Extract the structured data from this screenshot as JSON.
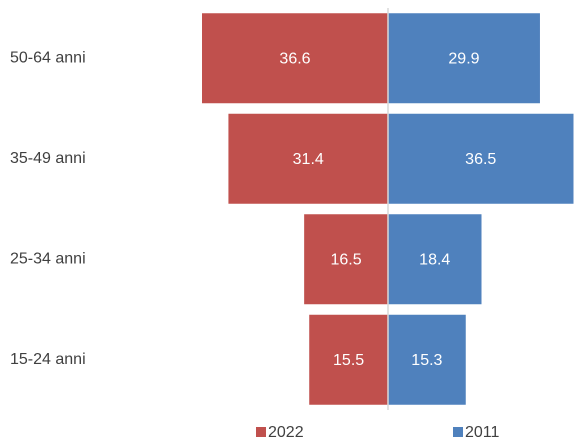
{
  "chart_data": {
    "type": "butterfly",
    "categories": [
      "50-64 anni",
      "35-49 anni",
      "25-34 anni",
      "15-24 anni"
    ],
    "series": [
      {
        "name": "2022",
        "color": "#c0504d",
        "values": [
          36.6,
          31.4,
          16.5,
          15.5
        ]
      },
      {
        "name": "2011",
        "color": "#4f81bd",
        "values": [
          29.9,
          36.5,
          18.4,
          15.3
        ]
      }
    ],
    "legend": "bottom"
  }
}
